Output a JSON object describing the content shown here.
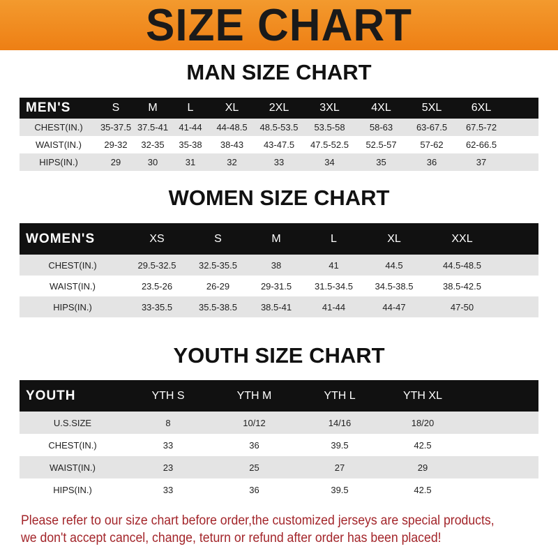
{
  "banner": "SIZE CHART",
  "men": {
    "title": "MAN SIZE CHART",
    "header": "MEN'S",
    "sizes": [
      "S",
      "M",
      "L",
      "XL",
      "2XL",
      "3XL",
      "4XL",
      "5XL",
      "6XL"
    ],
    "rows": [
      {
        "label": "CHEST(IN.)",
        "values": [
          "35-37.5",
          "37.5-41",
          "41-44",
          "44-48.5",
          "48.5-53.5",
          "53.5-58",
          "58-63",
          "63-67.5",
          "67.5-72"
        ]
      },
      {
        "label": "WAIST(IN.)",
        "values": [
          "29-32",
          "32-35",
          "35-38",
          "38-43",
          "43-47.5",
          "47.5-52.5",
          "52.5-57",
          "57-62",
          "62-66.5"
        ]
      },
      {
        "label": "HIPS(IN.)",
        "values": [
          "29",
          "30",
          "31",
          "32",
          "33",
          "34",
          "35",
          "36",
          "37"
        ]
      }
    ]
  },
  "women": {
    "title": "WOMEN SIZE CHART",
    "header": "WOMEN'S",
    "sizes": [
      "XS",
      "S",
      "M",
      "L",
      "XL",
      "XXL"
    ],
    "rows": [
      {
        "label": "CHEST(IN.)",
        "values": [
          "29.5-32.5",
          "32.5-35.5",
          "38",
          "41",
          "44.5",
          "44.5-48.5"
        ]
      },
      {
        "label": "WAIST(IN.)",
        "values": [
          "23.5-26",
          "26-29",
          "29-31.5",
          "31.5-34.5",
          "34.5-38.5",
          "38.5-42.5"
        ]
      },
      {
        "label": "HIPS(IN.)",
        "values": [
          "33-35.5",
          "35.5-38.5",
          "38.5-41",
          "41-44",
          "44-47",
          "47-50"
        ]
      }
    ]
  },
  "youth": {
    "title": "YOUTH SIZE CHART",
    "header": "YOUTH",
    "sizes": [
      "YTH S",
      "YTH M",
      "YTH L",
      "YTH XL"
    ],
    "rows": [
      {
        "label": "U.S.SIZE",
        "values": [
          "8",
          "10/12",
          "14/16",
          "18/20"
        ]
      },
      {
        "label": "CHEST(IN.)",
        "values": [
          "33",
          "36",
          "39.5",
          "42.5"
        ]
      },
      {
        "label": "WAIST(IN.)",
        "values": [
          "23",
          "25",
          "27",
          "29"
        ]
      },
      {
        "label": "HIPS(IN.)",
        "values": [
          "33",
          "36",
          "39.5",
          "42.5"
        ]
      }
    ]
  },
  "note": [
    "Please refer to our size chart before order,the customized jerseys are special products,",
    "we don't accept cancel, change, teturn or refund after order has been placed!"
  ],
  "colors": {
    "banner": "#ee7f14",
    "header_row": "#111111",
    "shaded_row": "#e4e4e4",
    "note": "#a3252a"
  }
}
